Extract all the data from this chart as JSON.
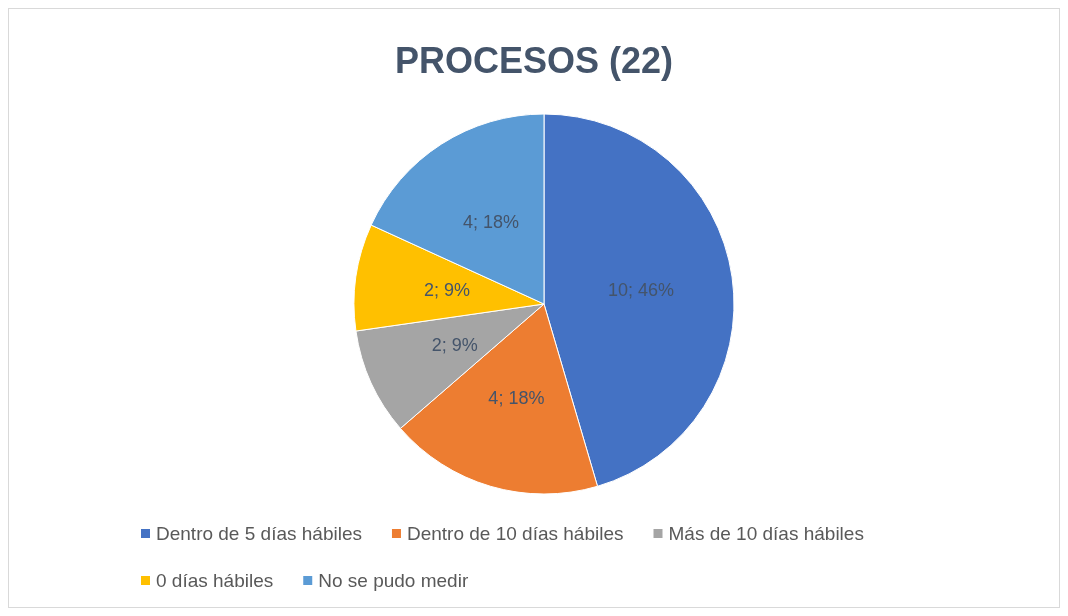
{
  "chart_data": {
    "type": "pie",
    "title": "PROCESOS (22)",
    "categories": [
      "Dentro de 5 días hábiles",
      "Dentro de 10 días hábiles",
      "Más de 10 días hábiles",
      "0 días hábiles",
      "No se pudo medir"
    ],
    "values": [
      10,
      4,
      2,
      2,
      4
    ],
    "colors": [
      "#4472c4",
      "#ed7d31",
      "#a5a5a5",
      "#ffc000",
      "#5b9bd5"
    ],
    "value_labels": [
      "10; 46%",
      "4; 18%",
      "2; 9%",
      "2; 9%",
      "4; 18%"
    ],
    "legend": "bottom"
  }
}
